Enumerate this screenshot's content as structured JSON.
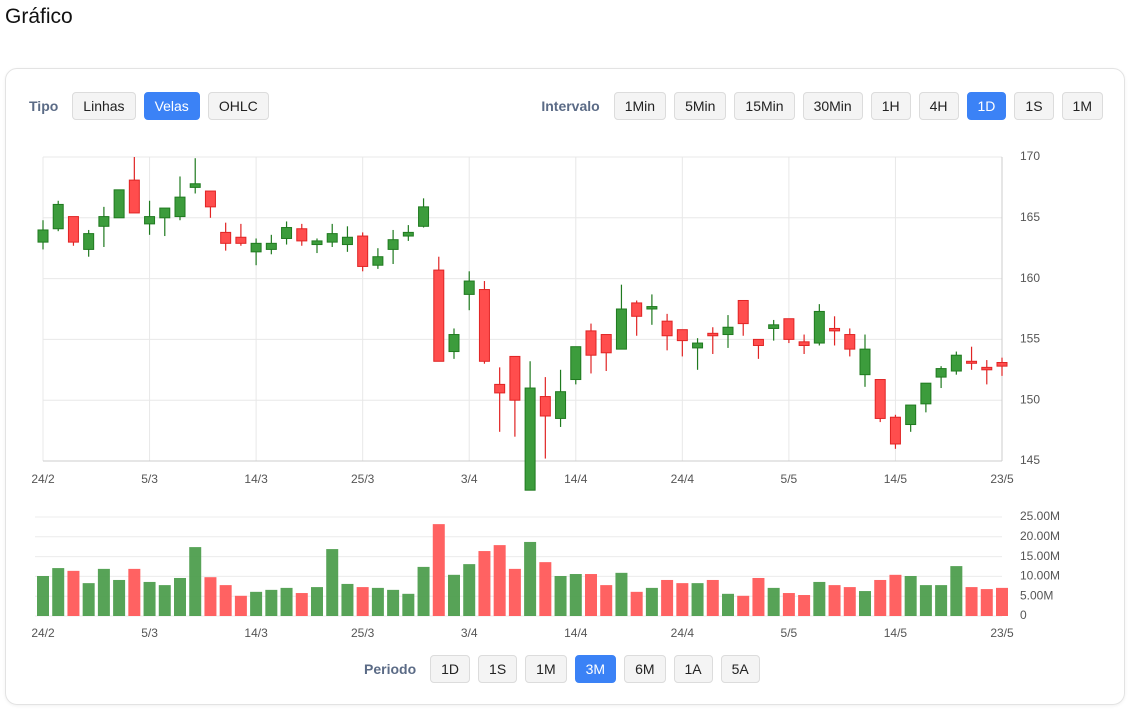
{
  "header": {
    "title": "Gráfico"
  },
  "toolbar": {
    "type_label": "Tipo",
    "type_buttons": [
      {
        "label": "Linhas",
        "active": false
      },
      {
        "label": "Velas",
        "active": true
      },
      {
        "label": "OHLC",
        "active": false
      }
    ],
    "interval_label": "Intervalo",
    "interval_buttons": [
      {
        "label": "1Min",
        "active": false
      },
      {
        "label": "5Min",
        "active": false
      },
      {
        "label": "15Min",
        "active": false
      },
      {
        "label": "30Min",
        "active": false
      },
      {
        "label": "1H",
        "active": false
      },
      {
        "label": "4H",
        "active": false
      },
      {
        "label": "1D",
        "active": true
      },
      {
        "label": "1S",
        "active": false
      },
      {
        "label": "1M",
        "active": false
      }
    ]
  },
  "period_bar": {
    "label": "Periodo",
    "buttons": [
      {
        "label": "1D",
        "active": false
      },
      {
        "label": "1S",
        "active": false
      },
      {
        "label": "1M",
        "active": false
      },
      {
        "label": "3M",
        "active": true
      },
      {
        "label": "6M",
        "active": false
      },
      {
        "label": "1A",
        "active": false
      },
      {
        "label": "5A",
        "active": false
      }
    ]
  },
  "chart_data": [
    {
      "type": "candlestick",
      "categories": [
        "24/2",
        null,
        null,
        null,
        null,
        null,
        null,
        "5/3",
        null,
        null,
        null,
        null,
        null,
        null,
        "14/3",
        null,
        null,
        null,
        null,
        null,
        null,
        "25/3",
        null,
        null,
        null,
        null,
        null,
        null,
        "3/4",
        null,
        null,
        null,
        null,
        null,
        null,
        "14/4",
        null,
        null,
        null,
        null,
        null,
        null,
        "24/4",
        null,
        null,
        null,
        null,
        null,
        null,
        "5/5",
        null,
        null,
        null,
        null,
        null,
        null,
        "14/5",
        null,
        null,
        null,
        null,
        null,
        null,
        "23/5"
      ],
      "open": [
        163.0,
        164.1,
        165.1,
        162.4,
        164.3,
        165.0,
        168.1,
        164.5,
        165.0,
        165.1,
        167.5,
        167.2,
        163.8,
        163.4,
        162.2,
        162.4,
        163.3,
        164.1,
        162.8,
        163.0,
        162.8,
        163.5,
        161.1,
        162.4,
        163.5,
        164.3,
        160.7,
        154.0,
        158.7,
        159.1,
        151.3,
        153.6,
        142.6,
        150.3,
        148.5,
        151.7,
        155.7,
        155.4,
        154.2,
        158.0,
        157.5,
        156.5,
        155.8,
        154.3,
        155.5,
        155.4,
        158.2,
        155.0,
        155.9,
        156.7,
        154.8,
        154.7,
        155.9,
        155.4,
        152.1,
        151.7,
        148.6,
        148.0,
        149.7,
        151.9,
        152.4,
        153.2,
        152.7,
        153.1
      ],
      "high": [
        164.8,
        166.4,
        165.1,
        164.0,
        165.9,
        167.3,
        170.0,
        166.4,
        165.8,
        168.4,
        169.9,
        167.2,
        164.6,
        164.5,
        163.3,
        163.6,
        164.7,
        164.5,
        163.3,
        164.5,
        164.3,
        163.8,
        162.5,
        164.0,
        164.4,
        166.6,
        161.8,
        155.9,
        160.6,
        159.8,
        152.7,
        153.6,
        153.2,
        151.9,
        152.5,
        154.4,
        156.3,
        155.4,
        159.5,
        158.2,
        158.7,
        157.1,
        155.8,
        155.1,
        156.0,
        157.0,
        158.2,
        155.0,
        156.6,
        156.7,
        155.4,
        157.9,
        156.9,
        155.9,
        155.4,
        151.7,
        148.8,
        149.6,
        151.4,
        152.8,
        154.0,
        154.4,
        153.3,
        153.5
      ],
      "low": [
        162.4,
        163.9,
        162.7,
        161.8,
        162.6,
        165.0,
        165.4,
        163.6,
        163.5,
        164.8,
        167.0,
        165.0,
        162.3,
        162.7,
        161.1,
        162.0,
        162.8,
        162.7,
        162.1,
        162.6,
        162.2,
        160.6,
        160.8,
        161.2,
        163.1,
        164.2,
        153.2,
        153.4,
        157.4,
        153.0,
        147.4,
        147.0,
        142.6,
        145.2,
        147.8,
        151.3,
        152.2,
        152.4,
        154.2,
        155.3,
        156.2,
        154.1,
        153.6,
        152.5,
        153.8,
        154.3,
        155.3,
        153.4,
        154.9,
        154.7,
        153.8,
        154.5,
        154.5,
        153.6,
        151.1,
        148.2,
        146.0,
        147.4,
        149.0,
        151.0,
        152.1,
        152.5,
        151.3,
        152.0
      ],
      "close": [
        164.0,
        166.1,
        163.0,
        163.7,
        165.1,
        167.3,
        165.4,
        165.1,
        165.8,
        166.7,
        167.8,
        165.9,
        162.9,
        162.9,
        162.9,
        162.9,
        164.2,
        163.1,
        163.1,
        163.7,
        163.4,
        161.0,
        161.8,
        163.2,
        163.8,
        165.9,
        153.2,
        155.4,
        159.8,
        153.2,
        150.6,
        150.0,
        151.0,
        148.7,
        150.7,
        154.4,
        153.7,
        153.9,
        157.5,
        156.9,
        157.7,
        155.3,
        154.9,
        154.7,
        155.3,
        156.0,
        156.3,
        154.5,
        156.2,
        155.0,
        154.5,
        157.3,
        155.7,
        154.2,
        154.2,
        148.5,
        146.4,
        149.6,
        151.4,
        152.6,
        153.7,
        153.1,
        152.5,
        152.8
      ],
      "ylim": [
        145,
        170
      ],
      "yticks": [
        145,
        150,
        155,
        160,
        165,
        170
      ],
      "up_color": "#3c9c3c",
      "down_color": "#ff4d4d",
      "grid": true
    },
    {
      "type": "bar",
      "categories": [
        "24/2",
        null,
        null,
        null,
        null,
        null,
        null,
        "5/3",
        null,
        null,
        null,
        null,
        null,
        null,
        "14/3",
        null,
        null,
        null,
        null,
        null,
        null,
        "25/3",
        null,
        null,
        null,
        null,
        null,
        null,
        "3/4",
        null,
        null,
        null,
        null,
        null,
        null,
        "14/4",
        null,
        null,
        null,
        null,
        null,
        null,
        "24/4",
        null,
        null,
        null,
        null,
        null,
        null,
        "5/5",
        null,
        null,
        null,
        null,
        null,
        null,
        "14/5",
        null,
        null,
        null,
        null,
        null,
        null,
        "23/5"
      ],
      "values": [
        10100000,
        12100000,
        11400000,
        8300000,
        11900000,
        9100000,
        11900000,
        8600000,
        7800000,
        9600000,
        17400000,
        9800000,
        7800000,
        5100000,
        6100000,
        6600000,
        7100000,
        5800000,
        7300000,
        16900000,
        8100000,
        7300000,
        7100000,
        6600000,
        5600000,
        12400000,
        23200000,
        10400000,
        13100000,
        16400000,
        17900000,
        11900000,
        18700000,
        13600000,
        10100000,
        10600000,
        10600000,
        7800000,
        10900000,
        6100000,
        7100000,
        9100000,
        8300000,
        8300000,
        9100000,
        5600000,
        5100000,
        9600000,
        7100000,
        5800000,
        5300000,
        8600000,
        7800000,
        7300000,
        6300000,
        9100000,
        10400000,
        10100000,
        7800000,
        7800000,
        12600000,
        7300000,
        6800000,
        7100000
      ],
      "ylim": [
        0,
        25000000
      ],
      "yticks": [
        0,
        {
          "value": 5000000,
          "label": "5.00M"
        },
        {
          "value": 10000000,
          "label": "10.00M"
        },
        {
          "value": 15000000,
          "label": "15.00M"
        },
        {
          "value": 20000000,
          "label": "20.00M"
        },
        {
          "value": 25000000,
          "label": "25.00M"
        }
      ],
      "up_color": "#4e9e4e",
      "down_color": "#ff5a5a",
      "grid": true
    }
  ]
}
